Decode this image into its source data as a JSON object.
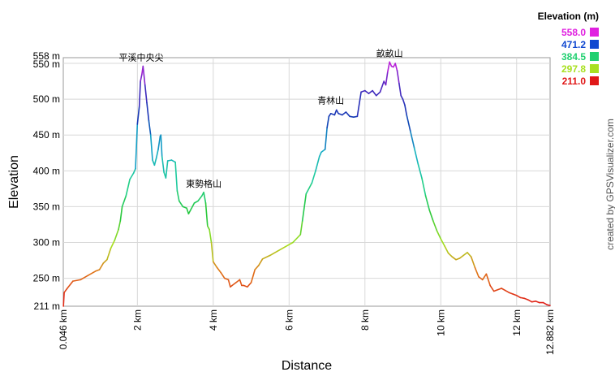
{
  "chart_data": {
    "type": "line",
    "xlabel": "Distance",
    "ylabel": "Elevation",
    "xlim": [
      0.046,
      12.882
    ],
    "ylim": [
      211,
      558
    ],
    "x_ticks": [
      {
        "v": 0.046,
        "label": "0.046 km"
      },
      {
        "v": 2,
        "label": "2 km"
      },
      {
        "v": 4,
        "label": "4 km"
      },
      {
        "v": 6,
        "label": "6 km"
      },
      {
        "v": 8,
        "label": "8 km"
      },
      {
        "v": 10,
        "label": "10 km"
      },
      {
        "v": 12,
        "label": "12 km"
      },
      {
        "v": 12.882,
        "label": "12.882 km"
      }
    ],
    "y_ticks": [
      {
        "v": 211,
        "label": "211 m"
      },
      {
        "v": 250,
        "label": "250 m"
      },
      {
        "v": 300,
        "label": "300 m"
      },
      {
        "v": 350,
        "label": "350 m"
      },
      {
        "v": 400,
        "label": "400 m"
      },
      {
        "v": 450,
        "label": "450 m"
      },
      {
        "v": 500,
        "label": "500 m"
      },
      {
        "v": 550,
        "label": "550 m"
      },
      {
        "v": 558,
        "label": "558 m"
      }
    ],
    "grid": true,
    "legend": {
      "title": "Elevation (m)",
      "placement": "top-right",
      "entries": [
        {
          "label": "558.0",
          "color": "#e020e0"
        },
        {
          "label": "471.2",
          "color": "#1048d0"
        },
        {
          "label": "384.5",
          "color": "#20d070"
        },
        {
          "label": "297.8",
          "color": "#a8e020"
        },
        {
          "label": "211.0",
          "color": "#e01818"
        }
      ]
    },
    "annotations": [
      {
        "text": "平溪中央尖",
        "x": 2.1,
        "y": 546
      },
      {
        "text": "東勢格山",
        "x": 3.75,
        "y": 370
      },
      {
        "text": "青林山",
        "x": 7.1,
        "y": 486
      },
      {
        "text": "畝畝山",
        "x": 8.65,
        "y": 552
      }
    ],
    "credit": "created by GPSVisualizer.com",
    "points": [
      [
        0.05,
        211
      ],
      [
        0.07,
        230
      ],
      [
        0.15,
        236
      ],
      [
        0.3,
        246
      ],
      [
        0.5,
        248
      ],
      [
        0.7,
        254
      ],
      [
        0.9,
        260
      ],
      [
        1.0,
        262
      ],
      [
        1.1,
        271
      ],
      [
        1.2,
        276
      ],
      [
        1.3,
        292
      ],
      [
        1.4,
        303
      ],
      [
        1.5,
        318
      ],
      [
        1.55,
        330
      ],
      [
        1.6,
        350
      ],
      [
        1.7,
        365
      ],
      [
        1.8,
        388
      ],
      [
        1.9,
        397
      ],
      [
        1.95,
        403
      ],
      [
        2.0,
        465
      ],
      [
        2.05,
        490
      ],
      [
        2.08,
        525
      ],
      [
        2.12,
        535
      ],
      [
        2.15,
        546
      ],
      [
        2.2,
        520
      ],
      [
        2.25,
        495
      ],
      [
        2.3,
        470
      ],
      [
        2.35,
        450
      ],
      [
        2.4,
        415
      ],
      [
        2.45,
        408
      ],
      [
        2.5,
        418
      ],
      [
        2.55,
        430
      ],
      [
        2.6,
        448
      ],
      [
        2.62,
        450
      ],
      [
        2.65,
        420
      ],
      [
        2.7,
        398
      ],
      [
        2.75,
        390
      ],
      [
        2.8,
        414
      ],
      [
        2.9,
        415
      ],
      [
        3.0,
        412
      ],
      [
        3.05,
        372
      ],
      [
        3.1,
        358
      ],
      [
        3.2,
        350
      ],
      [
        3.3,
        348
      ],
      [
        3.35,
        340
      ],
      [
        3.4,
        345
      ],
      [
        3.5,
        355
      ],
      [
        3.6,
        358
      ],
      [
        3.7,
        365
      ],
      [
        3.75,
        370
      ],
      [
        3.8,
        355
      ],
      [
        3.85,
        323
      ],
      [
        3.9,
        318
      ],
      [
        3.95,
        300
      ],
      [
        4.0,
        273
      ],
      [
        4.1,
        265
      ],
      [
        4.2,
        258
      ],
      [
        4.3,
        250
      ],
      [
        4.4,
        248
      ],
      [
        4.45,
        238
      ],
      [
        4.5,
        240
      ],
      [
        4.6,
        244
      ],
      [
        4.7,
        248
      ],
      [
        4.75,
        240
      ],
      [
        4.8,
        240
      ],
      [
        4.9,
        238
      ],
      [
        5.0,
        244
      ],
      [
        5.1,
        262
      ],
      [
        5.2,
        268
      ],
      [
        5.3,
        277
      ],
      [
        5.5,
        282
      ],
      [
        5.7,
        288
      ],
      [
        5.9,
        294
      ],
      [
        6.1,
        300
      ],
      [
        6.3,
        311
      ],
      [
        6.35,
        330
      ],
      [
        6.45,
        368
      ],
      [
        6.6,
        383
      ],
      [
        6.7,
        400
      ],
      [
        6.8,
        420
      ],
      [
        6.85,
        426
      ],
      [
        6.95,
        430
      ],
      [
        7.0,
        460
      ],
      [
        7.05,
        476
      ],
      [
        7.1,
        480
      ],
      [
        7.2,
        478
      ],
      [
        7.25,
        485
      ],
      [
        7.3,
        480
      ],
      [
        7.4,
        478
      ],
      [
        7.5,
        482
      ],
      [
        7.6,
        476
      ],
      [
        7.7,
        475
      ],
      [
        7.8,
        476
      ],
      [
        7.9,
        510
      ],
      [
        8.0,
        512
      ],
      [
        8.1,
        508
      ],
      [
        8.2,
        512
      ],
      [
        8.3,
        505
      ],
      [
        8.4,
        510
      ],
      [
        8.5,
        525
      ],
      [
        8.55,
        520
      ],
      [
        8.6,
        538
      ],
      [
        8.65,
        552
      ],
      [
        8.7,
        546
      ],
      [
        8.75,
        545
      ],
      [
        8.8,
        550
      ],
      [
        8.85,
        540
      ],
      [
        8.9,
        522
      ],
      [
        8.95,
        505
      ],
      [
        9.0,
        500
      ],
      [
        9.05,
        492
      ],
      [
        9.1,
        478
      ],
      [
        9.2,
        455
      ],
      [
        9.3,
        432
      ],
      [
        9.4,
        410
      ],
      [
        9.5,
        390
      ],
      [
        9.6,
        365
      ],
      [
        9.7,
        345
      ],
      [
        9.8,
        330
      ],
      [
        9.9,
        316
      ],
      [
        10.0,
        305
      ],
      [
        10.1,
        295
      ],
      [
        10.2,
        285
      ],
      [
        10.3,
        280
      ],
      [
        10.4,
        276
      ],
      [
        10.5,
        278
      ],
      [
        10.6,
        282
      ],
      [
        10.7,
        286
      ],
      [
        10.8,
        280
      ],
      [
        10.9,
        265
      ],
      [
        11.0,
        252
      ],
      [
        11.1,
        248
      ],
      [
        11.2,
        256
      ],
      [
        11.3,
        240
      ],
      [
        11.4,
        232
      ],
      [
        11.5,
        234
      ],
      [
        11.6,
        236
      ],
      [
        11.7,
        233
      ],
      [
        11.8,
        230
      ],
      [
        11.9,
        228
      ],
      [
        12.0,
        226
      ],
      [
        12.1,
        223
      ],
      [
        12.2,
        222
      ],
      [
        12.3,
        220
      ],
      [
        12.4,
        217
      ],
      [
        12.5,
        218
      ],
      [
        12.6,
        216
      ],
      [
        12.7,
        216
      ],
      [
        12.8,
        213
      ],
      [
        12.882,
        212
      ]
    ]
  }
}
